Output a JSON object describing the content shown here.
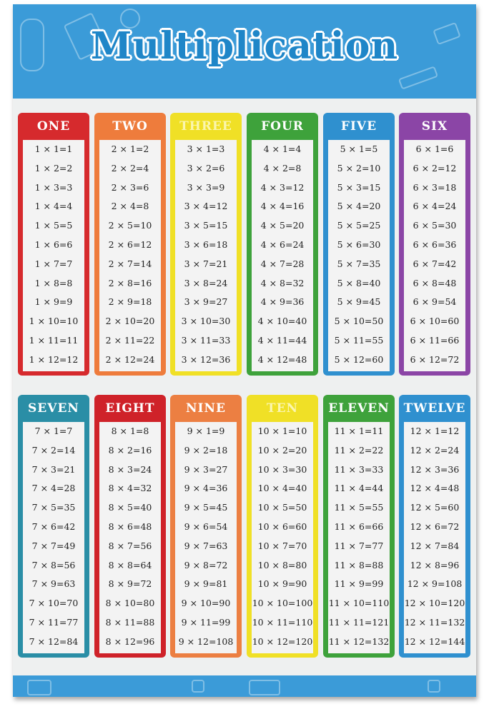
{
  "title": "Multiplication",
  "tables": [
    {
      "name": "ONE",
      "color": "#d62a2d"
    },
    {
      "name": "TWO",
      "color": "#ee7c3c"
    },
    {
      "name": "THREE",
      "color": "#f0e026"
    },
    {
      "name": "FOUR",
      "color": "#3ea23b"
    },
    {
      "name": "FIVE",
      "color": "#2f90cf"
    },
    {
      "name": "SIX",
      "color": "#8b45a6"
    },
    {
      "name": "SEVEN",
      "color": "#2a8ea6"
    },
    {
      "name": "EIGHT",
      "color": "#cf2229"
    },
    {
      "name": "NINE",
      "color": "#ec7f42"
    },
    {
      "name": "TEN",
      "color": "#f0e026"
    },
    {
      "name": "ELEVEN",
      "color": "#3ea23b"
    },
    {
      "name": "TWELVE",
      "color": "#2f90cf"
    }
  ],
  "rows": [
    [
      "1 × 1=1",
      "1 × 2=2",
      "1 × 3=3",
      "1 × 4=4",
      "1 × 5=5",
      "1 × 6=6",
      "1 × 7=7",
      "1 × 8=8",
      "1 × 9=9",
      "1 × 10=10",
      "1 × 11=11",
      "1 × 12=12"
    ],
    [
      "2 × 1=2",
      "2 × 2=4",
      "2 × 3=6",
      "2 × 4=8",
      "2 × 5=10",
      "2 × 6=12",
      "2 × 7=14",
      "2 × 8=16",
      "2 × 9=18",
      "2 × 10=20",
      "2 × 11=22",
      "2 × 12=24"
    ],
    [
      "3 × 1=3",
      "3 × 2=6",
      "3 × 3=9",
      "3 × 4=12",
      "3 × 5=15",
      "3 × 6=18",
      "3 × 7=21",
      "3 × 8=24",
      "3 × 9=27",
      "3 × 10=30",
      "3 × 11=33",
      "3 × 12=36"
    ],
    [
      "4 × 1=4",
      "4 × 2=8",
      "4 × 3=12",
      "4 × 4=16",
      "4 × 5=20",
      "4 × 6=24",
      "4 × 7=28",
      "4 × 8=32",
      "4 × 9=36",
      "4 × 10=40",
      "4 × 11=44",
      "4 × 12=48"
    ],
    [
      "5 × 1=5",
      "5 × 2=10",
      "5 × 3=15",
      "5 × 4=20",
      "5 × 5=25",
      "5 × 6=30",
      "5 × 7=35",
      "5 × 8=40",
      "5 × 9=45",
      "5 × 10=50",
      "5 × 11=55",
      "5 × 12=60"
    ],
    [
      "6 × 1=6",
      "6 × 2=12",
      "6 × 3=18",
      "6 × 4=24",
      "6 × 5=30",
      "6 × 6=36",
      "6 × 7=42",
      "6 × 8=48",
      "6 × 9=54",
      "6 × 10=60",
      "6 × 11=66",
      "6 × 12=72"
    ],
    [
      "7 × 1=7",
      "7 × 2=14",
      "7 × 3=21",
      "7 × 4=28",
      "7 × 5=35",
      "7 × 6=42",
      "7 × 7=49",
      "7 × 8=56",
      "7 × 9=63",
      "7 × 10=70",
      "7 × 11=77",
      "7 × 12=84"
    ],
    [
      "8 × 1=8",
      "8 × 2=16",
      "8 × 3=24",
      "8 × 4=32",
      "8 × 5=40",
      "8 × 6=48",
      "8 × 7=56",
      "8 × 8=64",
      "8 × 9=72",
      "8 × 10=80",
      "8 × 11=88",
      "8 × 12=96"
    ],
    [
      "9 × 1=9",
      "9 × 2=18",
      "9 × 3=27",
      "9 × 4=36",
      "9 × 5=45",
      "9 × 6=54",
      "9 × 7=63",
      "9 × 8=72",
      "9 × 9=81",
      "9 × 10=90",
      "9 × 11=99",
      "9 × 12=108"
    ],
    [
      "10 × 1=10",
      "10 × 2=20",
      "10 × 3=30",
      "10 × 4=40",
      "10 × 5=50",
      "10 × 6=60",
      "10 × 7=70",
      "10 × 8=80",
      "10 × 9=90",
      "10 × 10=100",
      "10 × 11=110",
      "10 × 12=120"
    ],
    [
      "11 × 1=11",
      "11 × 2=22",
      "11 × 3=33",
      "11 × 4=44",
      "11 × 5=55",
      "11 × 6=66",
      "11 × 7=77",
      "11 × 8=88",
      "11 × 9=99",
      "11 × 10=110",
      "11 × 11=121",
      "11 × 12=132"
    ],
    [
      "12 × 1=12",
      "12 × 2=24",
      "12 × 3=36",
      "12 × 4=48",
      "12 × 5=60",
      "12 × 6=72",
      "12 × 7=84",
      "12 × 8=96",
      "12 × 9=108",
      "12 × 10=120",
      "12 × 11=132",
      "12 × 12=144"
    ]
  ]
}
